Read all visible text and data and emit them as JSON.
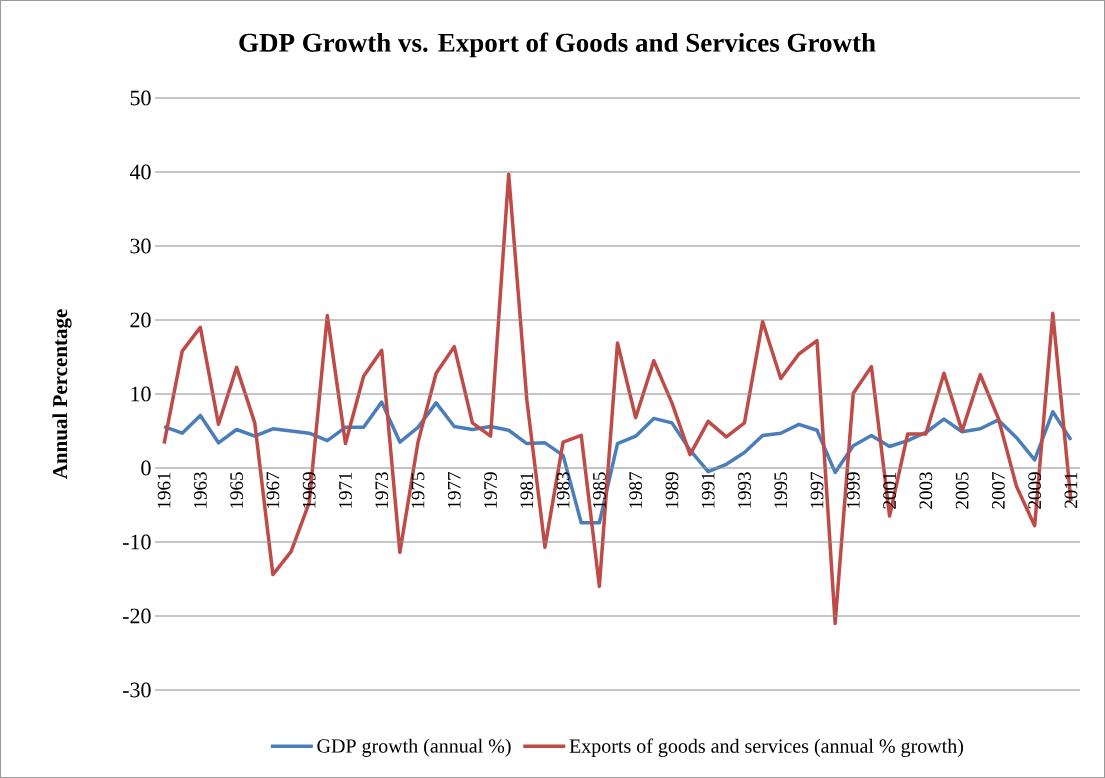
{
  "chart_data": {
    "type": "line",
    "title": "GDP Growth vs. Export of Goods and Services Growth",
    "ylabel": "Annual Percentage",
    "categories": [
      "1961",
      null,
      "1963",
      null,
      "1965",
      null,
      "1967",
      null,
      "1969",
      null,
      "1971",
      null,
      "1973",
      null,
      "1975",
      null,
      "1977",
      null,
      "1979",
      null,
      "1981",
      null,
      "1983",
      null,
      "1985",
      null,
      "1987",
      null,
      "1989",
      null,
      "1991",
      null,
      "1993",
      null,
      "1995",
      null,
      "1997",
      null,
      "1999",
      null,
      "2001",
      null,
      "2003",
      null,
      "2005",
      null,
      "2007",
      null,
      "2009",
      null,
      "2011"
    ],
    "series": [
      {
        "name": "GDP growth (annual %)",
        "color": "#4a7ebb",
        "values": [
          5.6,
          4.7,
          7.1,
          3.4,
          5.2,
          4.3,
          5.3,
          5.0,
          4.7,
          3.7,
          5.5,
          5.5,
          8.9,
          3.5,
          5.5,
          8.8,
          5.6,
          5.2,
          5.6,
          5.1,
          3.3,
          3.4,
          1.7,
          -7.4,
          -7.4,
          3.3,
          4.3,
          6.7,
          6.1,
          2.4,
          -0.5,
          0.5,
          2.1,
          4.4,
          4.7,
          5.9,
          5.1,
          -0.6,
          3.0,
          4.4,
          2.9,
          3.7,
          4.8,
          6.6,
          4.9,
          5.3,
          6.5,
          4.1,
          1.1,
          7.6,
          3.8
        ]
      },
      {
        "name": "Exports of goods and services (annual % growth)",
        "color": "#be4b48",
        "values": [
          3.3,
          15.8,
          19.0,
          5.9,
          13.6,
          6.1,
          -14.4,
          -11.3,
          -4.7,
          20.6,
          3.3,
          12.4,
          15.9,
          -11.4,
          3.5,
          12.8,
          16.4,
          6.1,
          4.3,
          39.7,
          9.2,
          -10.7,
          3.5,
          4.4,
          -16.0,
          16.9,
          6.8,
          14.5,
          8.8,
          1.8,
          6.3,
          4.2,
          6.1,
          19.8,
          12.1,
          15.4,
          17.2,
          -21.0,
          10.1,
          13.7,
          -6.5,
          4.6,
          4.6,
          12.8,
          5.0,
          12.6,
          6.7,
          -2.5,
          -7.8,
          20.9,
          -4.5
        ]
      }
    ],
    "ylim": [
      -30,
      50
    ],
    "yticks": [
      -30,
      -20,
      -10,
      0,
      10,
      20,
      30,
      40,
      50
    ],
    "grid": "y",
    "legend": "bottom"
  }
}
